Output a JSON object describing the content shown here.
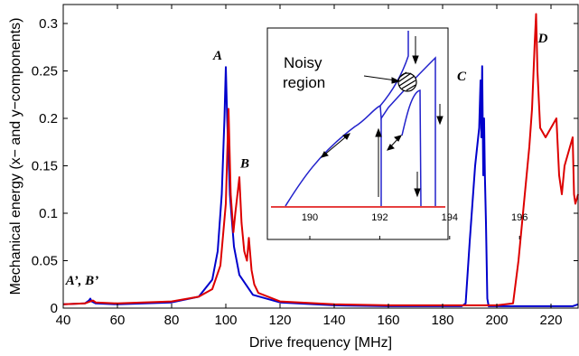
{
  "chart_data": {
    "type": "line",
    "title": "",
    "xlabel": "Drive frequency [MHz]",
    "ylabel": "Mechanical energy (x− and y−components)",
    "xlim": [
      40,
      230
    ],
    "ylim": [
      0,
      0.32
    ],
    "xticks": [
      "40",
      "60",
      "80",
      "100",
      "120",
      "140",
      "160",
      "180",
      "200",
      "220"
    ],
    "yticks": [
      "0",
      "0.05",
      "0.1",
      "0.15",
      "0.2",
      "0.25",
      "0.3"
    ],
    "grid": false,
    "series": [
      {
        "color": "#0000cc",
        "x": [
          40,
          48,
          49.5,
          50,
          50.5,
          52,
          60,
          80,
          90,
          95,
          97,
          98.5,
          99.5,
          100,
          100.5,
          101.5,
          103,
          105,
          110,
          120,
          140,
          160,
          180,
          187,
          188.5,
          190,
          192,
          193.5,
          194,
          194.3,
          194.6,
          195,
          195.3,
          195.6,
          196,
          196.5,
          197,
          200,
          220,
          228,
          230
        ],
        "y": [
          0.004,
          0.005,
          0.008,
          0.01,
          0.007,
          0.005,
          0.004,
          0.006,
          0.012,
          0.03,
          0.06,
          0.12,
          0.2,
          0.254,
          0.2,
          0.12,
          0.065,
          0.035,
          0.014,
          0.006,
          0.003,
          0.002,
          0.002,
          0.002,
          0.005,
          0.07,
          0.15,
          0.19,
          0.24,
          0.18,
          0.255,
          0.14,
          0.2,
          0.14,
          0.09,
          0.01,
          0.002,
          0.002,
          0.002,
          0.002,
          0.004
        ]
      },
      {
        "color": "#dd0000",
        "x": [
          40,
          48,
          50,
          51,
          52,
          60,
          80,
          90,
          95,
          98,
          100,
          101,
          101.8,
          102.8,
          103.5,
          104.5,
          105,
          105.8,
          106.8,
          107.8,
          108.5,
          109.5,
          110.5,
          112,
          120,
          140,
          160,
          180,
          200,
          206,
          208,
          210,
          212,
          213,
          214,
          214.5,
          215,
          216,
          218,
          220,
          222,
          223,
          224,
          225,
          227,
          228,
          228.5,
          229,
          230
        ],
        "y": [
          0.004,
          0.005,
          0.007,
          0.008,
          0.006,
          0.005,
          0.007,
          0.012,
          0.02,
          0.045,
          0.11,
          0.21,
          0.12,
          0.08,
          0.1,
          0.125,
          0.138,
          0.09,
          0.06,
          0.05,
          0.074,
          0.04,
          0.025,
          0.016,
          0.007,
          0.004,
          0.003,
          0.003,
          0.003,
          0.005,
          0.05,
          0.11,
          0.17,
          0.21,
          0.28,
          0.31,
          0.25,
          0.19,
          0.18,
          0.19,
          0.2,
          0.14,
          0.12,
          0.15,
          0.17,
          0.18,
          0.12,
          0.11,
          0.12
        ]
      }
    ],
    "annotations": [
      {
        "text": "A",
        "x": 97,
        "y": 0.262
      },
      {
        "text": "B",
        "x": 107,
        "y": 0.148
      },
      {
        "text": "C",
        "x": 187,
        "y": 0.24
      },
      {
        "text": "D",
        "x": 217,
        "y": 0.28
      },
      {
        "text": "A’, B’",
        "x": 47,
        "y": 0.025
      }
    ],
    "inset": {
      "xticks": [
        "190",
        "192",
        "194",
        "196"
      ],
      "text_line1": "Noisy",
      "text_line2": "region"
    }
  }
}
